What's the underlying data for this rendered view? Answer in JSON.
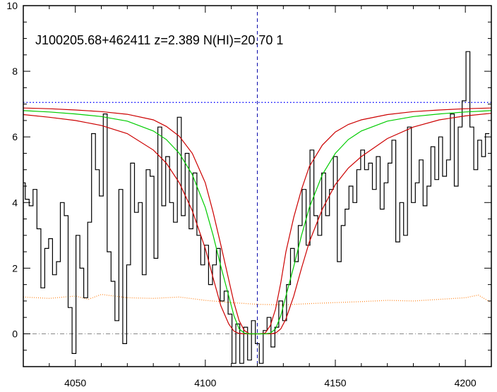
{
  "chart_data": {
    "type": "line",
    "title": "J100205.68+462411 z=2.389 N(HI)=20.70 1",
    "xlabel": "",
    "ylabel": "",
    "xlim": [
      4030,
      4210
    ],
    "ylim": [
      -1,
      10
    ],
    "x_ticks": [
      4050,
      4100,
      4150,
      4200
    ],
    "y_ticks": [
      0,
      2,
      4,
      6,
      8,
      10
    ],
    "grid": false,
    "legend": "none",
    "colors": {
      "flux": "#000000",
      "error": "#ff8c2a",
      "model": "#00cc00",
      "model_bounds": "#cc0000",
      "continuum": "#0000ff",
      "zero": "#888888",
      "center": "#0000aa"
    },
    "line_center_x": 4120,
    "continuum_level": 7.05,
    "zero_level": 0,
    "flux": {
      "x": [
        4030,
        4031.5,
        4033,
        4034.5,
        4036,
        4037.5,
        4039,
        4040.5,
        4042,
        4043.5,
        4045,
        4046.5,
        4048,
        4049.5,
        4051,
        4052.5,
        4054,
        4055.5,
        4057,
        4058.5,
        4060,
        4061.5,
        4063,
        4064.5,
        4066,
        4067.5,
        4069,
        4070.5,
        4072,
        4073.5,
        4075,
        4076.5,
        4078,
        4079.5,
        4081,
        4082.5,
        4084,
        4085.5,
        4087,
        4088.5,
        4090,
        4091.5,
        4093,
        4094.5,
        4096,
        4097.5,
        4099,
        4100.5,
        4102,
        4103.5,
        4105,
        4106.5,
        4108,
        4109.5,
        4111,
        4112.5,
        4114,
        4115.5,
        4117,
        4118.5,
        4120,
        4121.5,
        4123,
        4124.5,
        4126,
        4127.5,
        4129,
        4130.5,
        4132,
        4133.5,
        4135,
        4136.5,
        4138,
        4139.5,
        4141,
        4142.5,
        4144,
        4145.5,
        4147,
        4148.5,
        4150,
        4151.5,
        4153,
        4154.5,
        4156,
        4157.5,
        4159,
        4160.5,
        4162,
        4163.5,
        4165,
        4166.5,
        4168,
        4169.5,
        4171,
        4172.5,
        4174,
        4175.5,
        4177,
        4178.5,
        4180,
        4181.5,
        4183,
        4184.5,
        4186,
        4187.5,
        4189,
        4190.5,
        4192,
        4193.5,
        4195,
        4196.5,
        4198,
        4199.5,
        4201,
        4202.5,
        4204,
        4205.5,
        4207,
        4208.5
      ],
      "y": [
        4.6,
        4.1,
        3.9,
        4.4,
        3.2,
        1.4,
        2.6,
        2.9,
        1.8,
        2.2,
        4.0,
        3.6,
        0.8,
        -0.6,
        3.0,
        2.0,
        1.1,
        3.4,
        6.1,
        5.0,
        4.2,
        6.7,
        2.5,
        1.6,
        0.4,
        4.4,
        -0.3,
        2.1,
        5.2,
        3.7,
        4.0,
        1.8,
        5.0,
        4.8,
        2.3,
        6.3,
        3.9,
        5.4,
        4.0,
        3.4,
        6.6,
        3.6,
        5.5,
        3.2,
        4.9,
        3.0,
        2.1,
        2.7,
        1.5,
        2.1,
        2.6,
        1.0,
        1.3,
        0.6,
        -0.9,
        0.3,
        -0.9,
        0.2,
        -0.8,
        0.4,
        -0.3,
        -0.9,
        0.1,
        0.5,
        -0.4,
        0.2,
        1.0,
        0.4,
        1.5,
        2.6,
        2.2,
        3.3,
        4.4,
        2.7,
        5.6,
        3.6,
        3.0,
        4.9,
        3.6,
        4.4,
        5.4,
        2.2,
        3.3,
        3.8,
        4.5,
        4.0,
        5.0,
        5.6,
        5.0,
        5.2,
        4.4,
        5.4,
        3.8,
        4.6,
        5.2,
        5.9,
        2.8,
        4.0,
        3.0,
        6.3,
        4.0,
        4.6,
        5.3,
        3.9,
        4.5,
        5.7,
        4.7,
        6.0,
        4.8,
        5.3,
        6.7,
        4.5,
        6.3,
        7.1,
        8.6,
        6.3,
        5.0,
        5.9,
        5.4,
        6.1
      ]
    },
    "error": {
      "x": [
        4030,
        4040,
        4050,
        4055,
        4060,
        4070,
        4080,
        4090,
        4100,
        4110,
        4120,
        4130,
        4140,
        4150,
        4160,
        4170,
        4180,
        4190,
        4200,
        4205,
        4210
      ],
      "y": [
        1.12,
        1.08,
        1.15,
        1.05,
        1.2,
        1.1,
        1.08,
        1.12,
        1.02,
        0.95,
        0.9,
        0.88,
        0.92,
        0.95,
        0.98,
        1.02,
        1.0,
        1.05,
        1.1,
        1.18,
        0.95
      ]
    },
    "model": {
      "x": [
        4030,
        4040,
        4050,
        4060,
        4070,
        4080,
        4085,
        4090,
        4095,
        4100,
        4103,
        4106,
        4109,
        4111,
        4113,
        4115,
        4117,
        4119,
        4121,
        4123,
        4125,
        4127,
        4129,
        4131,
        4134,
        4137,
        4140,
        4145,
        4150,
        4155,
        4160,
        4170,
        4180,
        4190,
        4200,
        4210
      ],
      "y": [
        6.8,
        6.76,
        6.7,
        6.62,
        6.48,
        6.18,
        5.92,
        5.5,
        4.85,
        3.85,
        3.0,
        2.05,
        1.15,
        0.55,
        0.15,
        0.02,
        0.0,
        0.0,
        0.0,
        0.0,
        0.02,
        0.15,
        0.55,
        1.15,
        2.05,
        3.0,
        3.85,
        4.85,
        5.5,
        5.92,
        6.18,
        6.48,
        6.62,
        6.7,
        6.76,
        6.8
      ]
    },
    "model_upper": {
      "x": [
        4030,
        4040,
        4050,
        4060,
        4070,
        4080,
        4085,
        4090,
        4095,
        4100,
        4103,
        4106,
        4109,
        4111,
        4113,
        4115,
        4117,
        4119,
        4121,
        4123,
        4125,
        4127,
        4129,
        4131,
        4134,
        4137,
        4140,
        4145,
        4150,
        4155,
        4160,
        4170,
        4180,
        4190,
        4200,
        4210
      ],
      "y": [
        6.88,
        6.86,
        6.82,
        6.77,
        6.69,
        6.52,
        6.32,
        6.02,
        5.5,
        4.6,
        3.7,
        2.7,
        1.65,
        0.95,
        0.4,
        0.1,
        0.0,
        0.0,
        0.0,
        0.02,
        0.25,
        0.75,
        1.55,
        2.5,
        3.55,
        4.4,
        5.1,
        5.75,
        6.15,
        6.38,
        6.52,
        6.68,
        6.77,
        6.82,
        6.86,
        6.88
      ]
    },
    "model_lower": {
      "x": [
        4030,
        4040,
        4050,
        4060,
        4070,
        4080,
        4085,
        4090,
        4095,
        4100,
        4103,
        4106,
        4109,
        4111,
        4113,
        4115,
        4117,
        4119,
        4121,
        4123,
        4125,
        4127,
        4129,
        4131,
        4134,
        4137,
        4140,
        4145,
        4150,
        4155,
        4160,
        4170,
        4180,
        4190,
        4200,
        4210
      ],
      "y": [
        6.68,
        6.6,
        6.5,
        6.35,
        6.1,
        5.6,
        5.2,
        4.6,
        3.75,
        2.6,
        1.7,
        0.85,
        0.3,
        0.08,
        0.01,
        0.0,
        0.0,
        0.0,
        0.0,
        0.0,
        0.0,
        0.02,
        0.15,
        0.45,
        1.15,
        2.0,
        2.8,
        3.8,
        4.55,
        5.05,
        5.4,
        5.95,
        6.3,
        6.52,
        6.64,
        6.72
      ]
    }
  }
}
